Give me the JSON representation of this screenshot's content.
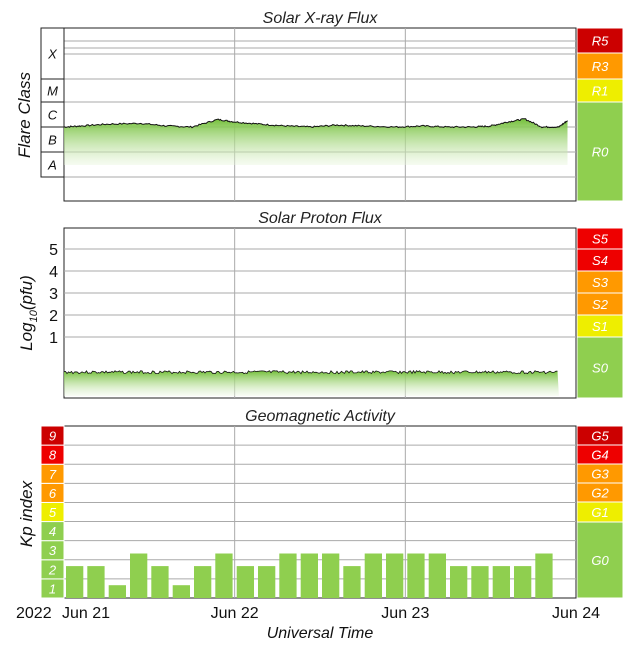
{
  "time_axis": {
    "year_label": "2022",
    "ticks": [
      "Jun 21",
      "Jun 22",
      "Jun 23",
      "Jun 24"
    ],
    "title": "Universal Time"
  },
  "colors": {
    "green": "#8fcf4f",
    "yellow": "#eeee00",
    "orange": "#ff9900",
    "red": "#ee0000",
    "dark_red": "#cc0000"
  },
  "chart_data": [
    {
      "type": "area",
      "title": "Solar X-ray Flux",
      "ylabel": "Flare Class",
      "y_scale": "log",
      "class_labels": [
        "X",
        "M",
        "C",
        "B",
        "A"
      ],
      "scale_bands": [
        {
          "label": "R5",
          "color": "#cc0000"
        },
        {
          "label": "R3",
          "color": "#ff9900"
        },
        {
          "label": "R1",
          "color": "#eeee00"
        },
        {
          "label": "R0",
          "color": "#8fcf4f"
        }
      ],
      "x_range": [
        "2022-06-21",
        "2022-06-24"
      ],
      "series": [
        {
          "x_days": [
            0,
            0.1,
            0.25,
            0.45,
            0.6,
            0.75,
            0.9,
            1.0,
            1.15,
            1.3,
            1.45,
            1.6,
            1.75,
            1.95,
            2.1,
            2.25,
            2.4,
            2.5,
            2.6,
            2.7,
            2.8,
            2.9,
            2.95
          ],
          "flux_class": [
            "C1.0",
            "C1.1",
            "C1.3",
            "C1.4",
            "C1.1",
            "C1.0",
            "C2.0",
            "C1.6",
            "C1.3",
            "C1.1",
            "C1.0",
            "C1.2",
            "C1.1",
            "C1.0",
            "C1.1",
            "C1.0",
            "C1.0",
            "C1.1",
            "C1.6",
            "C2.1",
            "C1.0",
            "C1.0",
            "C1.8"
          ]
        }
      ]
    },
    {
      "type": "area",
      "title": "Solar Proton Flux",
      "ylabel": "Log10(pfu)",
      "yticks": [
        "1",
        "2",
        "3",
        "4",
        "5"
      ],
      "scale_bands": [
        {
          "label": "S5",
          "color": "#ee0000"
        },
        {
          "label": "S4",
          "color": "#ee0000"
        },
        {
          "label": "S3",
          "color": "#ff9900"
        },
        {
          "label": "S2",
          "color": "#ff9900"
        },
        {
          "label": "S1",
          "color": "#eeee00"
        },
        {
          "label": "S0",
          "color": "#8fcf4f"
        }
      ],
      "x_range": [
        "2022-06-21",
        "2022-06-24"
      ],
      "series": [
        {
          "x_days": [
            0,
            1,
            2,
            2.9
          ],
          "log10_pfu": [
            -0.6,
            -0.6,
            -0.6,
            -0.6
          ]
        }
      ]
    },
    {
      "type": "bar",
      "title": "Geomagnetic Activity",
      "ylabel": "Kp index",
      "ylim": [
        0,
        9
      ],
      "kp_levels": [
        "1",
        "2",
        "3",
        "4",
        "5",
        "6",
        "7",
        "8",
        "9"
      ],
      "kp_level_colors": [
        "#8fcf4f",
        "#8fcf4f",
        "#8fcf4f",
        "#8fcf4f",
        "#eeee00",
        "#ff9900",
        "#ff9900",
        "#ee0000",
        "#cc0000"
      ],
      "scale_bands": [
        {
          "label": "G5",
          "color": "#cc0000"
        },
        {
          "label": "G4",
          "color": "#ee0000"
        },
        {
          "label": "G3",
          "color": "#ff9900"
        },
        {
          "label": "G2",
          "color": "#ff9900"
        },
        {
          "label": "G1",
          "color": "#eeee00"
        },
        {
          "label": "G0",
          "color": "#8fcf4f"
        }
      ],
      "x_range": [
        "2022-06-21",
        "2022-06-24"
      ],
      "bar_hours": 3,
      "values": [
        1.67,
        1.67,
        0.67,
        2.33,
        1.67,
        0.67,
        1.67,
        2.33,
        1.67,
        1.67,
        2.33,
        2.33,
        2.33,
        1.67,
        2.33,
        2.33,
        2.33,
        2.33,
        1.67,
        1.67,
        1.67,
        1.67,
        2.33
      ]
    }
  ]
}
